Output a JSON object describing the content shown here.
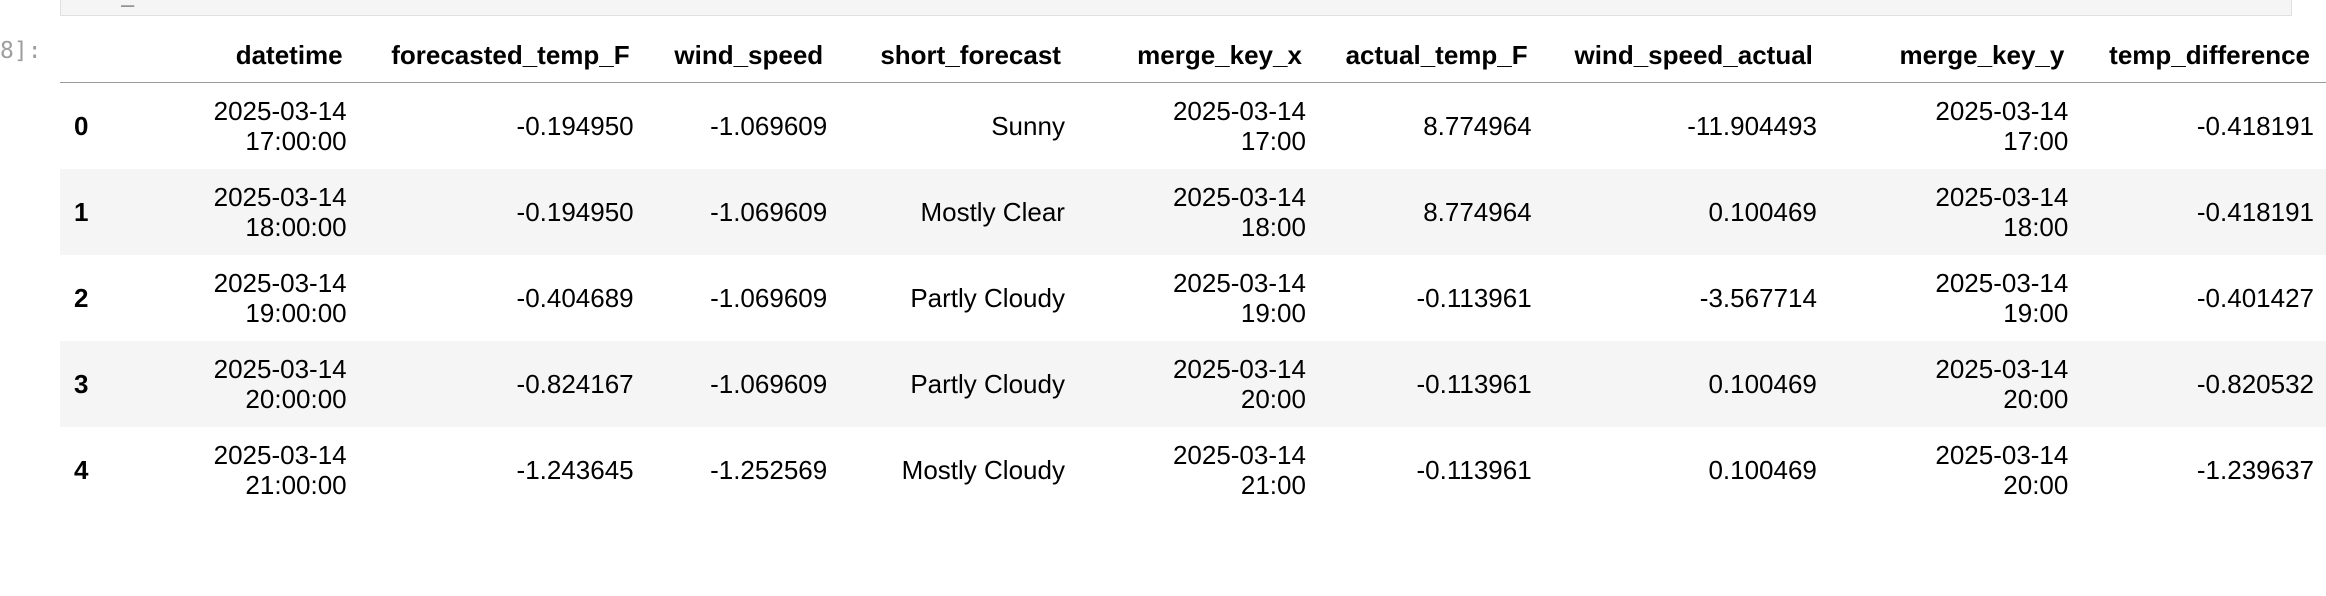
{
  "cell": {
    "prompt": "8]:",
    "code_fragment": "_"
  },
  "table": {
    "columns": [
      "",
      "datetime",
      "forecasted_temp_F",
      "wind_speed",
      "short_forecast",
      "merge_key_x",
      "actual_temp_F",
      "wind_speed_actual",
      "merge_key_y",
      "temp_difference"
    ],
    "rows": [
      {
        "index": "0",
        "datetime": "2025-03-14\n17:00:00",
        "forecasted_temp_F": "-0.194950",
        "wind_speed": "-1.069609",
        "short_forecast": "Sunny",
        "merge_key_x": "2025-03-14\n17:00",
        "actual_temp_F": "8.774964",
        "wind_speed_actual": "-11.904493",
        "merge_key_y": "2025-03-14\n17:00",
        "temp_difference": "-0.418191"
      },
      {
        "index": "1",
        "datetime": "2025-03-14\n18:00:00",
        "forecasted_temp_F": "-0.194950",
        "wind_speed": "-1.069609",
        "short_forecast": "Mostly Clear",
        "merge_key_x": "2025-03-14\n18:00",
        "actual_temp_F": "8.774964",
        "wind_speed_actual": "0.100469",
        "merge_key_y": "2025-03-14\n18:00",
        "temp_difference": "-0.418191"
      },
      {
        "index": "2",
        "datetime": "2025-03-14\n19:00:00",
        "forecasted_temp_F": "-0.404689",
        "wind_speed": "-1.069609",
        "short_forecast": "Partly Cloudy",
        "merge_key_x": "2025-03-14\n19:00",
        "actual_temp_F": "-0.113961",
        "wind_speed_actual": "-3.567714",
        "merge_key_y": "2025-03-14\n19:00",
        "temp_difference": "-0.401427"
      },
      {
        "index": "3",
        "datetime": "2025-03-14\n20:00:00",
        "forecasted_temp_F": "-0.824167",
        "wind_speed": "-1.069609",
        "short_forecast": "Partly Cloudy",
        "merge_key_x": "2025-03-14\n20:00",
        "actual_temp_F": "-0.113961",
        "wind_speed_actual": "0.100469",
        "merge_key_y": "2025-03-14\n20:00",
        "temp_difference": "-0.820532"
      },
      {
        "index": "4",
        "datetime": "2025-03-14\n21:00:00",
        "forecasted_temp_F": "-1.243645",
        "wind_speed": "-1.252569",
        "short_forecast": "Mostly Cloudy",
        "merge_key_x": "2025-03-14\n21:00",
        "actual_temp_F": "-0.113961",
        "wind_speed_actual": "0.100469",
        "merge_key_y": "2025-03-14\n20:00",
        "temp_difference": "-1.239637"
      }
    ]
  }
}
